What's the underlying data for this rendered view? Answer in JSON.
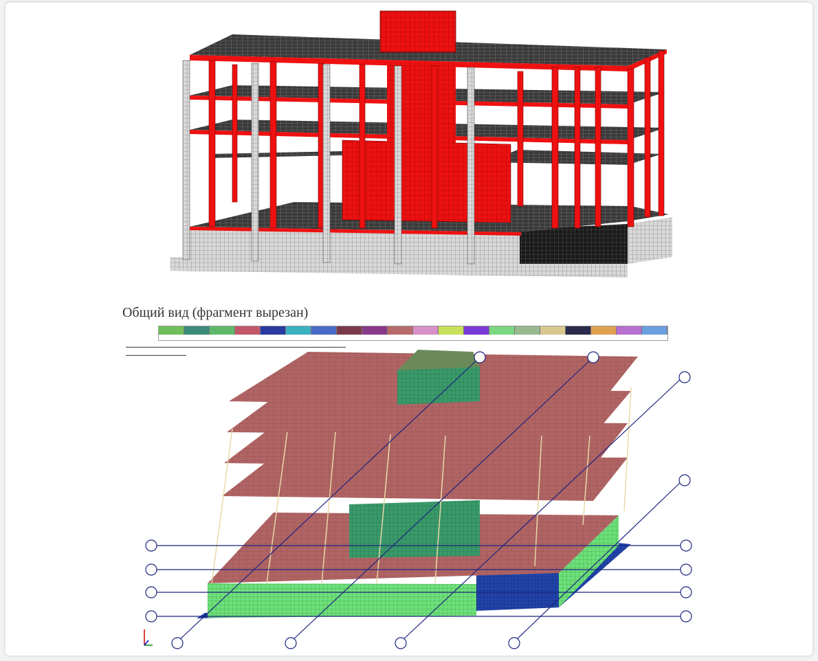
{
  "caption": "Общий вид (фрагмент вырезан)",
  "legend": [
    {
      "color": "#6fbf5a"
    },
    {
      "color": "#3a8a7a"
    },
    {
      "color": "#5fb86a"
    },
    {
      "color": "#c0586a"
    },
    {
      "color": "#2a3aa0"
    },
    {
      "color": "#3ab0c0"
    },
    {
      "color": "#4a6ac8"
    },
    {
      "color": "#7a3a4a"
    },
    {
      "color": "#8a3a8a"
    },
    {
      "color": "#b86a6a"
    },
    {
      "color": "#d890c8"
    },
    {
      "color": "#c8e05a"
    },
    {
      "color": "#7a3ad8"
    },
    {
      "color": "#7ad880"
    },
    {
      "color": "#98b890"
    },
    {
      "color": "#d8c890"
    },
    {
      "color": "#2a2a4a"
    },
    {
      "color": "#e0a050"
    },
    {
      "color": "#b870d0"
    },
    {
      "color": "#6aa0e0"
    }
  ],
  "colors": {
    "frame_red": "#ee1111",
    "concrete_grey": "#d6d6d6",
    "slab_dark": "#3a3a3a",
    "slab_rose": "#b06464",
    "core_green": "#3a9a6a",
    "found_green": "#6ee07a",
    "found_blue": "#2244aa",
    "axis_navy": "#1a237e"
  },
  "icons": {
    "axes": "xyz-axes-icon"
  }
}
